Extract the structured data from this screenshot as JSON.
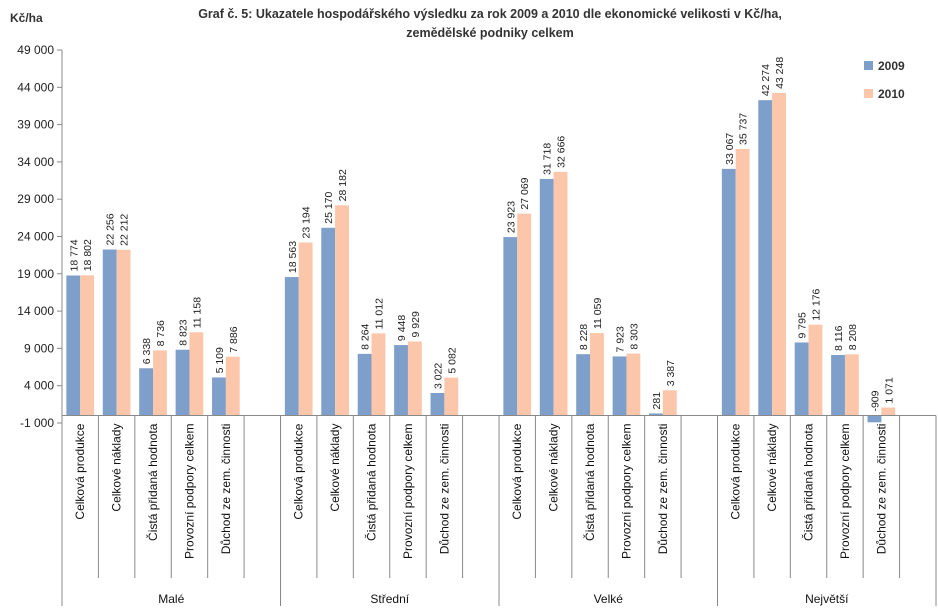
{
  "chart_data": {
    "type": "bar",
    "title_line1": "Graf č. 5: Ukazatele hospodářského výsledku za rok 2009 a 2010 dle ekonomické velikosti v Kč/ha,",
    "title_line2": "zemědělské podniky celkem",
    "ylabel": "Kč/ha",
    "ylim": [
      -1000,
      49000
    ],
    "yticks": [
      -1000,
      4000,
      9000,
      14000,
      19000,
      24000,
      29000,
      34000,
      39000,
      44000,
      49000
    ],
    "ytick_labels": [
      "-1 000",
      "4 000",
      "9 000",
      "14 000",
      "19 000",
      "24 000",
      "29 000",
      "34 000",
      "39 000",
      "44 000",
      "49 000"
    ],
    "legend_position": "top-right",
    "grid": false,
    "groups": [
      "Malé",
      "Střední",
      "Velké",
      "Největší"
    ],
    "categories": [
      "Celková produkce",
      "Celkové náklady",
      "Čistá přidaná hodnota",
      "Provozní podpory celkem",
      "Důchod ze zem. činnosti"
    ],
    "series": [
      {
        "name": "2009",
        "color": "#7f9fcb",
        "values": [
          [
            18774,
            22256,
            6338,
            8823,
            5109
          ],
          [
            18563,
            25170,
            8264,
            9448,
            3022
          ],
          [
            23923,
            31718,
            8228,
            7923,
            281
          ],
          [
            33067,
            42274,
            9795,
            8116,
            -909
          ]
        ],
        "labels": [
          [
            "18 774",
            "22 256",
            "6 338",
            "8 823",
            "5 109"
          ],
          [
            "18 563",
            "25 170",
            "8 264",
            "9 448",
            "3 022"
          ],
          [
            "23 923",
            "31 718",
            "8 228",
            "7 923",
            "281"
          ],
          [
            "33 067",
            "42 274",
            "9 795",
            "8 116",
            "-909"
          ]
        ]
      },
      {
        "name": "2010",
        "color": "#fbc6a9",
        "values": [
          [
            18802,
            22212,
            8736,
            11158,
            7886
          ],
          [
            23194,
            28182,
            11012,
            9929,
            5082
          ],
          [
            27069,
            32666,
            11059,
            8303,
            3387
          ],
          [
            35737,
            43248,
            12176,
            8208,
            1071
          ]
        ],
        "labels": [
          [
            "18 802",
            "22 212",
            "8 736",
            "11 158",
            "7 886"
          ],
          [
            "23 194",
            "28 182",
            "11 012",
            "9 929",
            "5 082"
          ],
          [
            "27 069",
            "32 666",
            "11 059",
            "8 303",
            "3 387"
          ],
          [
            "35 737",
            "43 248",
            "12 176",
            "8 208",
            "1 071"
          ]
        ]
      }
    ]
  }
}
